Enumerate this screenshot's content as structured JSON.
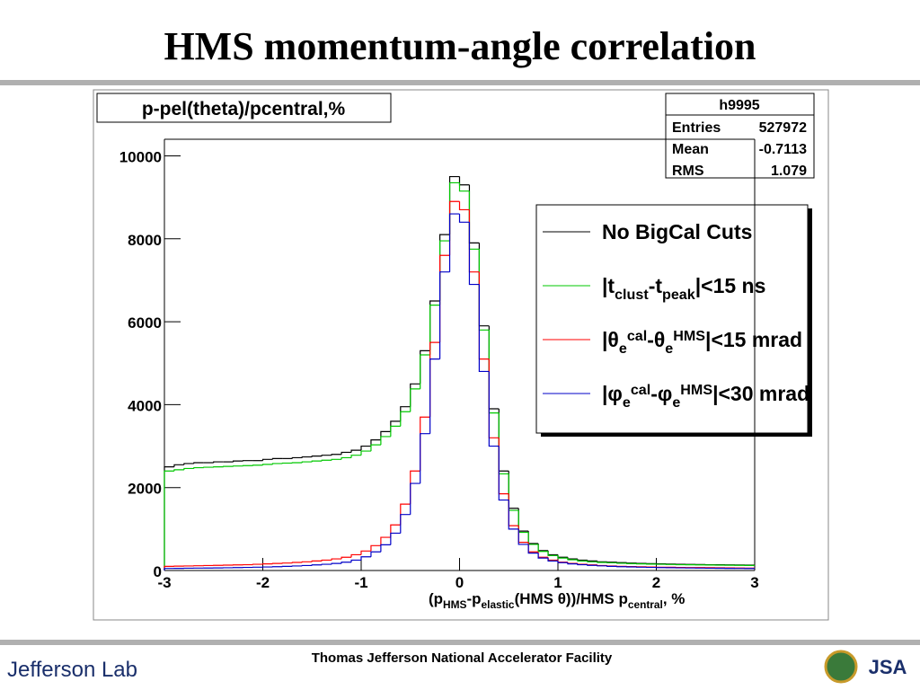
{
  "header": {
    "title": "HMS momentum-angle correlation"
  },
  "footer": {
    "center": "Thomas Jefferson National Accelerator Facility",
    "left": "Jefferson Lab",
    "right": "JSA"
  },
  "chart_data": {
    "type": "histogram",
    "title": "p-pel(theta)/pcentral,%",
    "stats": {
      "name": "h9995",
      "rows": [
        [
          "Entries",
          "527972"
        ],
        [
          "Mean",
          "-0.7113"
        ],
        [
          "RMS",
          "1.079"
        ]
      ]
    },
    "xlabel": [
      {
        "text": "(p"
      },
      {
        "text": "HMS",
        "pos": "sub"
      },
      {
        "text": "-p"
      },
      {
        "text": "elastic",
        "pos": "sub"
      },
      {
        "text": "(HMS θ))/HMS p"
      },
      {
        "text": "central",
        "pos": "sub"
      },
      {
        "text": ", %"
      }
    ],
    "xlim": [
      -3,
      3
    ],
    "ylim": [
      0,
      10400
    ],
    "xticks": [
      -3,
      -2,
      -1,
      0,
      1,
      2,
      3
    ],
    "yticks": [
      0,
      2000,
      4000,
      6000,
      8000,
      10000
    ],
    "bins": [
      -3,
      -2.9,
      -2.8,
      -2.7,
      -2.6,
      -2.5,
      -2.4,
      -2.3,
      -2.2,
      -2.1,
      -2,
      -1.9,
      -1.8,
      -1.7,
      -1.6,
      -1.5,
      -1.4,
      -1.3,
      -1.2,
      -1.1,
      -1,
      -0.9,
      -0.8,
      -0.7,
      -0.6,
      -0.5,
      -0.4,
      -0.3,
      -0.2,
      -0.1,
      0,
      0.1,
      0.2,
      0.3,
      0.4,
      0.5,
      0.6,
      0.7,
      0.8,
      0.9,
      1,
      1.1,
      1.2,
      1.3,
      1.4,
      1.5,
      1.6,
      1.7,
      1.8,
      1.9,
      2,
      2.1,
      2.2,
      2.3,
      2.4,
      2.5,
      2.6,
      2.7,
      2.8,
      2.9,
      3
    ],
    "series": [
      {
        "name": [
          {
            "text": "No BigCal Cuts"
          }
        ],
        "color": "#000000",
        "values": [
          2500,
          2550,
          2580,
          2600,
          2600,
          2620,
          2620,
          2640,
          2650,
          2650,
          2680,
          2700,
          2700,
          2720,
          2740,
          2760,
          2780,
          2800,
          2850,
          2900,
          3000,
          3150,
          3350,
          3600,
          3950,
          4500,
          5300,
          6500,
          8100,
          9500,
          9300,
          7900,
          5900,
          3900,
          2400,
          1500,
          950,
          650,
          480,
          380,
          320,
          280,
          250,
          230,
          210,
          200,
          190,
          180,
          170,
          165,
          160,
          155,
          150,
          148,
          145,
          140,
          138,
          135,
          132,
          130
        ]
      },
      {
        "name": [
          {
            "text": "|t"
          },
          {
            "text": "clust",
            "pos": "sub"
          },
          {
            "text": "-t"
          },
          {
            "text": "peak",
            "pos": "sub"
          },
          {
            "text": "|<15 ns"
          }
        ],
        "color": "#00c800",
        "values": [
          2400,
          2430,
          2460,
          2480,
          2490,
          2500,
          2510,
          2520,
          2530,
          2540,
          2560,
          2580,
          2590,
          2600,
          2620,
          2640,
          2660,
          2680,
          2720,
          2780,
          2880,
          3030,
          3230,
          3480,
          3830,
          4380,
          5200,
          6400,
          7950,
          9350,
          9150,
          7750,
          5800,
          3800,
          2330,
          1450,
          920,
          630,
          460,
          360,
          300,
          260,
          230,
          210,
          195,
          185,
          175,
          165,
          160,
          155,
          150,
          145,
          140,
          138,
          135,
          132,
          130,
          128,
          125,
          122
        ]
      },
      {
        "name": [
          {
            "text": "|θ"
          },
          {
            "text": "e",
            "pos": "sub"
          },
          {
            "text": "cal",
            "pos": "sup"
          },
          {
            "text": "-θ"
          },
          {
            "text": "e",
            "pos": "sub"
          },
          {
            "text": "HMS",
            "pos": "sup"
          },
          {
            "text": "|<15 mrad"
          }
        ],
        "color": "#ff0000",
        "values": [
          100,
          105,
          110,
          115,
          120,
          125,
          130,
          135,
          140,
          150,
          160,
          170,
          180,
          195,
          210,
          230,
          250,
          280,
          320,
          380,
          470,
          600,
          800,
          1100,
          1600,
          2400,
          3700,
          5500,
          7600,
          8900,
          8700,
          7200,
          5100,
          3200,
          1850,
          1080,
          680,
          450,
          320,
          250,
          200,
          170,
          150,
          135,
          120,
          110,
          100,
          95,
          90,
          85,
          80,
          78,
          75,
          72,
          70,
          68,
          65,
          62,
          60,
          58
        ]
      },
      {
        "name": [
          {
            "text": "|φ"
          },
          {
            "text": "e",
            "pos": "sub"
          },
          {
            "text": "cal",
            "pos": "sup"
          },
          {
            "text": "-φ"
          },
          {
            "text": "e",
            "pos": "sub"
          },
          {
            "text": "HMS",
            "pos": "sup"
          },
          {
            "text": "|<30 mrad"
          }
        ],
        "color": "#0000c8",
        "values": [
          50,
          52,
          55,
          58,
          60,
          63,
          66,
          70,
          75,
          80,
          85,
          92,
          100,
          110,
          120,
          135,
          150,
          170,
          200,
          250,
          330,
          450,
          620,
          900,
          1350,
          2100,
          3300,
          5100,
          7200,
          8600,
          8400,
          6900,
          4800,
          3000,
          1700,
          1000,
          630,
          420,
          300,
          230,
          190,
          160,
          140,
          125,
          112,
          100,
          92,
          86,
          80,
          75,
          70,
          67,
          64,
          61,
          58,
          56,
          54,
          52,
          50,
          48
        ]
      }
    ]
  }
}
